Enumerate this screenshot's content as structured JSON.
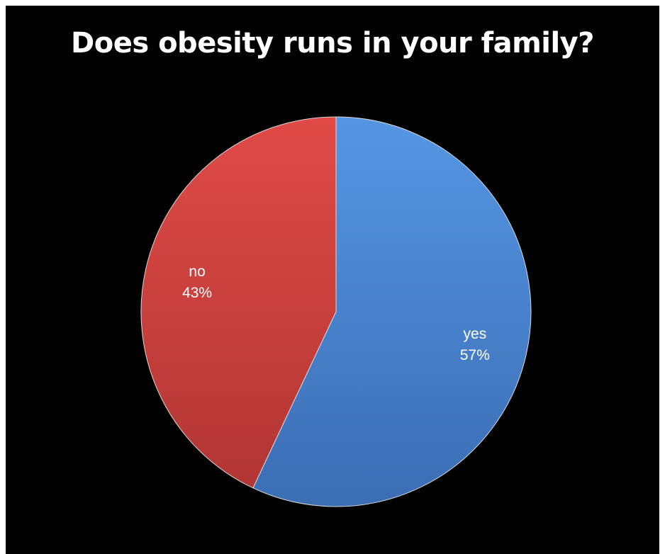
{
  "chart_data": {
    "type": "pie",
    "title": "Does obesity runs in your family?",
    "slices": [
      {
        "label": "yes",
        "value": 57,
        "display": "57%",
        "color": "#4a84d4"
      },
      {
        "label": "no",
        "value": 43,
        "display": "43%",
        "color": "#cc4240"
      }
    ],
    "start_angle_deg": 0,
    "direction": "clockwise",
    "background": "#000000"
  }
}
